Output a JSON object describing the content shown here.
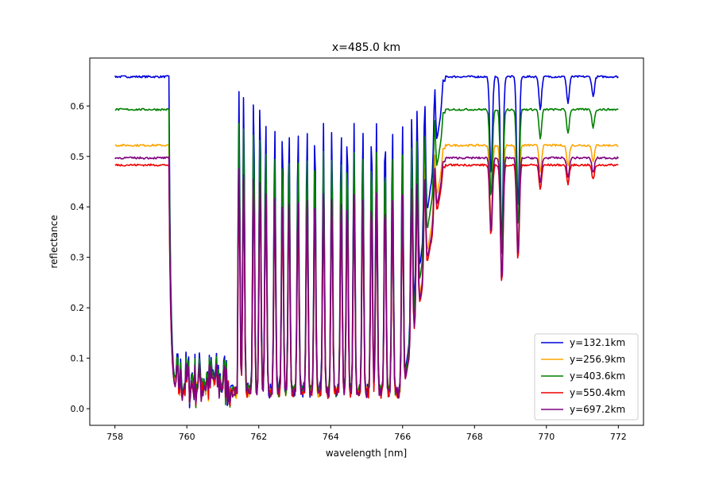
{
  "chart_data": {
    "type": "line",
    "title": "x=485.0 km",
    "xlabel": "wavelength [nm]",
    "ylabel": "reflectance",
    "xlim": [
      757.3,
      772.7
    ],
    "ylim": [
      -0.033,
      0.695
    ],
    "xticks": [
      758,
      760,
      762,
      764,
      766,
      768,
      770,
      772
    ],
    "yticks": [
      0.0,
      0.1,
      0.2,
      0.3,
      0.4,
      0.5,
      0.6
    ],
    "grid": false,
    "legend_position": "lower-right",
    "band": {
      "start": 759.5,
      "end": 767.2,
      "cont_level": 0.95,
      "deep_start": 759.7,
      "deep_end": 761.2,
      "deep_level": 0.18,
      "lines": [
        {
          "c": 768.46,
          "d": 0.3
        },
        {
          "c": 768.76,
          "d": 0.5
        },
        {
          "c": 769.21,
          "d": 0.4
        },
        {
          "c": 769.83,
          "d": 0.1
        },
        {
          "c": 770.6,
          "d": 0.08
        },
        {
          "c": 771.3,
          "d": 0.06
        }
      ]
    },
    "series": [
      {
        "name": "y=132.1km",
        "color": "#0000dd",
        "continuum": 0.658,
        "band_scale": 1.0
      },
      {
        "name": "y=256.9km",
        "color": "#ffa500",
        "continuum": 0.522,
        "band_scale": 0.8
      },
      {
        "name": "y=403.6km",
        "color": "#008000",
        "continuum": 0.593,
        "band_scale": 0.88
      },
      {
        "name": "y=550.4km",
        "color": "#ee0000",
        "continuum": 0.483,
        "band_scale": 0.73
      },
      {
        "name": "y=697.2km",
        "color": "#800080",
        "continuum": 0.497,
        "band_scale": 0.73
      }
    ]
  }
}
